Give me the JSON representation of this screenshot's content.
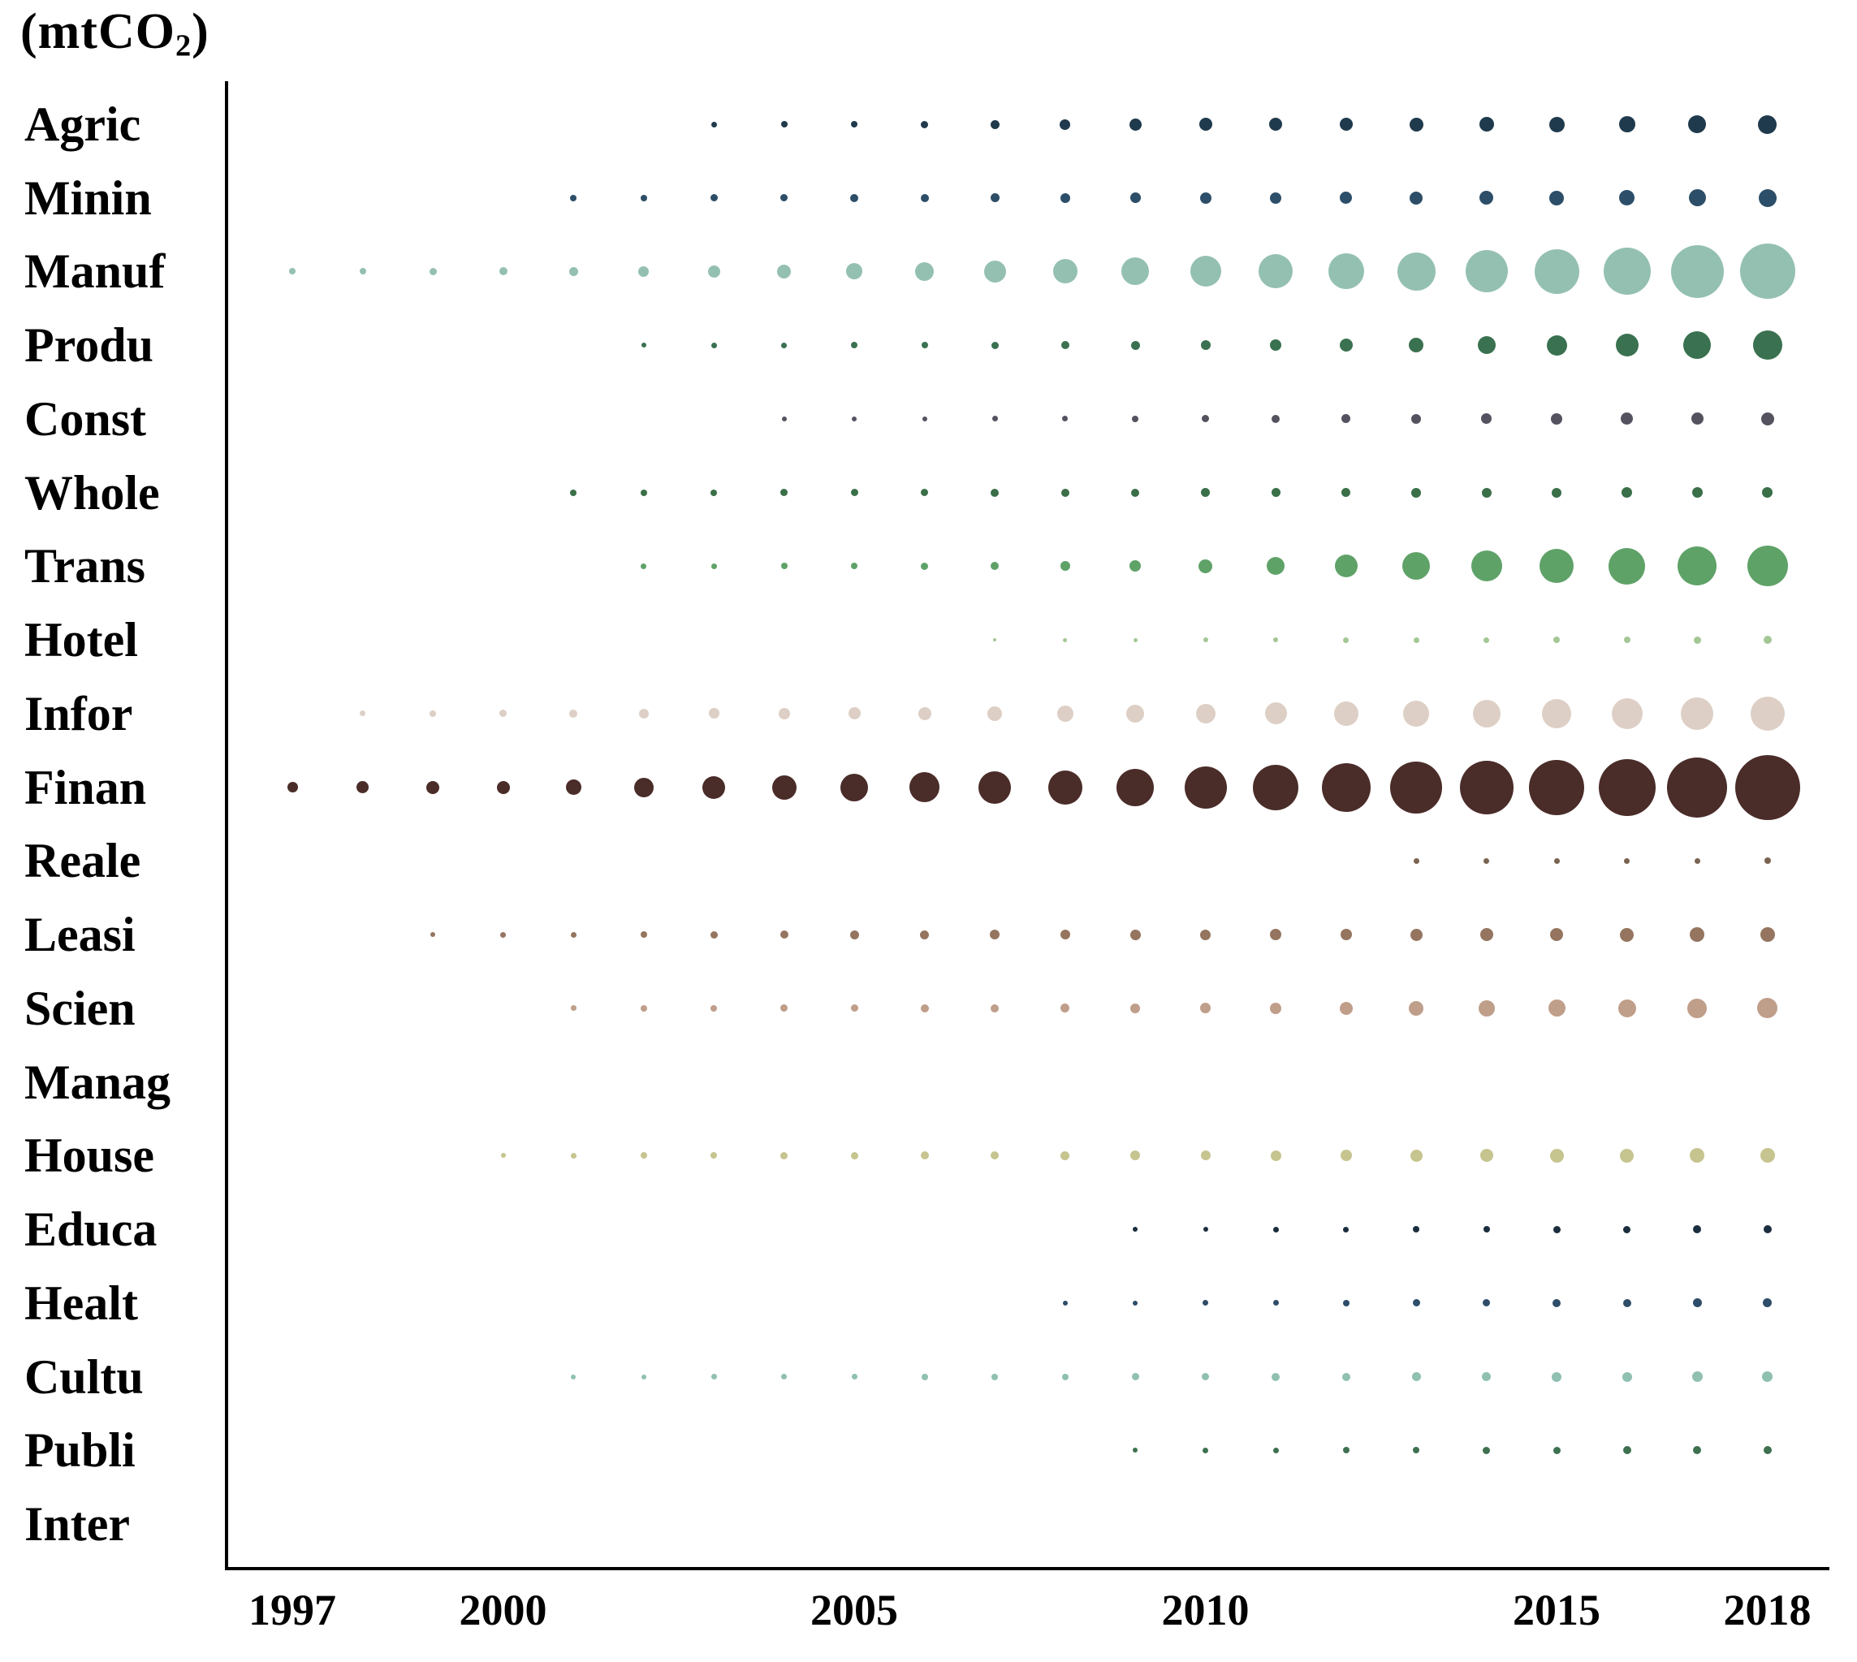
{
  "title": {
    "prefix": "(mtCO",
    "sub": "2",
    "suffix": ")"
  },
  "chart_data": {
    "type": "scatter",
    "subtype": "bubble-matrix",
    "title": "(mtCO2)",
    "value_encoding": "bubble diameter proportional to sector CO2 emissions in mtCO2; empty cells mean no value shown",
    "grid": false,
    "legend_position": "none",
    "x": [
      1997,
      1998,
      1999,
      2000,
      2001,
      2002,
      2003,
      2004,
      2005,
      2006,
      2007,
      2008,
      2009,
      2010,
      2011,
      2012,
      2013,
      2014,
      2015,
      2016,
      2017,
      2018
    ],
    "x_ticks": [
      1997,
      2000,
      2005,
      2010,
      2015,
      2018
    ],
    "x_tick_labels": [
      "1997",
      "2000",
      "2005",
      "2010",
      "2015",
      "2018"
    ],
    "categories": [
      "Agric",
      "Minin",
      "Manuf",
      "Produ",
      "Const",
      "Whole",
      "Trans",
      "Hotel",
      "Infor",
      "Finan",
      "Reale",
      "Leasi",
      "Scien",
      "Manag",
      "House",
      "Educa",
      "Healt",
      "Cultu",
      "Publi",
      "Inter"
    ],
    "series": [
      {
        "name": "Agric",
        "color": "#1f3a4c",
        "diameters": [
          0,
          0,
          0,
          0,
          0,
          0,
          7,
          8,
          8,
          9,
          11,
          13,
          15,
          16,
          16,
          16,
          17,
          18,
          19,
          20,
          22,
          23
        ]
      },
      {
        "name": "Minin",
        "color": "#2d4e68",
        "diameters": [
          0,
          0,
          0,
          0,
          8,
          8,
          9,
          9,
          10,
          10,
          11,
          12,
          13,
          14,
          14,
          15,
          16,
          17,
          18,
          19,
          21,
          22
        ]
      },
      {
        "name": "Manuf",
        "color": "#94c0b2",
        "diameters": [
          8,
          8,
          9,
          10,
          11,
          13,
          15,
          17,
          20,
          23,
          27,
          30,
          34,
          38,
          42,
          44,
          47,
          52,
          55,
          58,
          65,
          68
        ]
      },
      {
        "name": "Produ",
        "color": "#3a7150",
        "diameters": [
          0,
          0,
          0,
          0,
          0,
          6,
          7,
          7,
          8,
          8,
          9,
          10,
          11,
          12,
          14,
          16,
          18,
          22,
          25,
          28,
          34,
          36
        ]
      },
      {
        "name": "Const",
        "color": "#555260",
        "diameters": [
          0,
          0,
          0,
          0,
          0,
          0,
          0,
          6,
          6,
          6,
          7,
          7,
          8,
          9,
          10,
          11,
          12,
          13,
          14,
          15,
          15,
          16
        ]
      },
      {
        "name": "Whole",
        "color": "#3a6f48",
        "diameters": [
          0,
          0,
          0,
          0,
          8,
          8,
          8,
          9,
          9,
          9,
          10,
          10,
          10,
          11,
          11,
          11,
          12,
          12,
          12,
          13,
          13,
          13
        ]
      },
      {
        "name": "Trans",
        "color": "#5fa268",
        "diameters": [
          0,
          0,
          0,
          0,
          0,
          7,
          7,
          8,
          8,
          9,
          10,
          12,
          14,
          17,
          22,
          28,
          34,
          38,
          42,
          45,
          48,
          50
        ]
      },
      {
        "name": "Hotel",
        "color": "#a3c795",
        "diameters": [
          0,
          0,
          0,
          0,
          0,
          0,
          0,
          0,
          0,
          0,
          4,
          5,
          5,
          6,
          6,
          7,
          7,
          7,
          8,
          8,
          9,
          10
        ]
      },
      {
        "name": "Infor",
        "color": "#ddcfc5",
        "diameters": [
          0,
          7,
          8,
          9,
          10,
          12,
          13,
          14,
          15,
          16,
          18,
          20,
          22,
          24,
          27,
          30,
          32,
          34,
          36,
          38,
          40,
          42
        ]
      },
      {
        "name": "Finan",
        "color": "#4a2c29",
        "diameters": [
          13,
          15,
          16,
          16,
          19,
          24,
          28,
          30,
          34,
          37,
          40,
          42,
          46,
          52,
          56,
          60,
          64,
          66,
          68,
          70,
          74,
          80
        ]
      },
      {
        "name": "Reale",
        "color": "#7a6350",
        "diameters": [
          0,
          0,
          0,
          0,
          0,
          0,
          0,
          0,
          0,
          0,
          0,
          0,
          0,
          0,
          0,
          0,
          7,
          7,
          7,
          7,
          7,
          8
        ]
      },
      {
        "name": "Leasi",
        "color": "#95755f",
        "diameters": [
          0,
          0,
          6,
          7,
          7,
          8,
          9,
          10,
          11,
          11,
          12,
          12,
          13,
          13,
          14,
          14,
          15,
          16,
          16,
          17,
          18,
          18
        ]
      },
      {
        "name": "Scien",
        "color": "#bf9e8a",
        "diameters": [
          0,
          0,
          0,
          0,
          7,
          8,
          8,
          9,
          9,
          10,
          10,
          11,
          12,
          13,
          14,
          16,
          18,
          20,
          21,
          22,
          24,
          25
        ]
      },
      {
        "name": "Manag",
        "color": "#999999",
        "diameters": [
          0,
          0,
          0,
          0,
          0,
          0,
          0,
          0,
          0,
          0,
          0,
          0,
          0,
          0,
          0,
          0,
          0,
          0,
          0,
          0,
          0,
          0
        ]
      },
      {
        "name": "House",
        "color": "#c6c48f",
        "diameters": [
          0,
          0,
          0,
          6,
          7,
          8,
          8,
          9,
          9,
          10,
          10,
          11,
          12,
          12,
          13,
          14,
          15,
          16,
          17,
          17,
          18,
          18
        ]
      },
      {
        "name": "Educa",
        "color": "#1b2e3f",
        "diameters": [
          0,
          0,
          0,
          0,
          0,
          0,
          0,
          0,
          0,
          0,
          0,
          0,
          6,
          6,
          7,
          7,
          8,
          8,
          9,
          9,
          10,
          10
        ]
      },
      {
        "name": "Healt",
        "color": "#2e4d68",
        "diameters": [
          0,
          0,
          0,
          0,
          0,
          0,
          0,
          0,
          0,
          0,
          0,
          6,
          6,
          7,
          7,
          8,
          9,
          9,
          10,
          10,
          11,
          11
        ]
      },
      {
        "name": "Cultu",
        "color": "#8fc0b1",
        "diameters": [
          0,
          0,
          0,
          0,
          6,
          6,
          7,
          7,
          7,
          8,
          8,
          8,
          9,
          9,
          10,
          10,
          11,
          11,
          12,
          12,
          13,
          13
        ]
      },
      {
        "name": "Publi",
        "color": "#3e7150",
        "diameters": [
          0,
          0,
          0,
          0,
          0,
          0,
          0,
          0,
          0,
          0,
          0,
          0,
          6,
          7,
          7,
          8,
          8,
          9,
          9,
          10,
          10,
          10
        ]
      },
      {
        "name": "Inter",
        "color": "#999999",
        "diameters": [
          0,
          0,
          0,
          0,
          0,
          0,
          0,
          0,
          0,
          0,
          0,
          0,
          0,
          0,
          0,
          0,
          0,
          0,
          0,
          0,
          0,
          0
        ]
      }
    ]
  }
}
